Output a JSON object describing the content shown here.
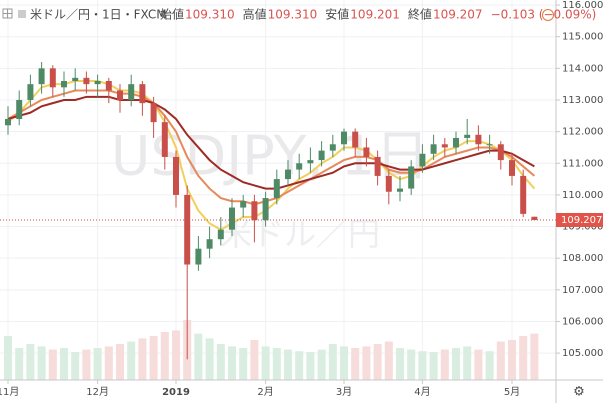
{
  "chart_data": {
    "type": "candlestick",
    "header": {
      "symbol": "米ドル／円・1日・FXCM",
      "ohlc": [
        {
          "label": "始値",
          "value": "109.310"
        },
        {
          "label": "高値",
          "value": "109.310"
        },
        {
          "label": "安値",
          "value": "109.201"
        },
        {
          "label": "終値",
          "value": "109.207"
        }
      ],
      "change": "−0.103 (−0.09%)"
    },
    "watermark": {
      "main": "USDJPY, 1日",
      "sub": "米ドル／円"
    },
    "categories": [
      null,
      null,
      null,
      null,
      null,
      null,
      null,
      null,
      null,
      null,
      null,
      null,
      null,
      null,
      null,
      null,
      null,
      null,
      null,
      null,
      null,
      null,
      null,
      null,
      null,
      null,
      null,
      null,
      null,
      null,
      null,
      null,
      null,
      null,
      null,
      null,
      null,
      null,
      null,
      null,
      null,
      null,
      null,
      null,
      null,
      null,
      null,
      null
    ],
    "candles": [
      [
        112.2,
        112.8,
        111.9,
        112.4
      ],
      [
        112.4,
        113.3,
        112.2,
        113.0
      ],
      [
        113.0,
        113.8,
        112.8,
        113.5
      ],
      [
        113.5,
        114.2,
        113.2,
        114.0
      ],
      [
        114.0,
        114.1,
        113.1,
        113.4
      ],
      [
        113.4,
        113.9,
        113.1,
        113.6
      ],
      [
        113.6,
        114.0,
        113.3,
        113.7
      ],
      [
        113.7,
        113.9,
        113.2,
        113.5
      ],
      [
        113.5,
        113.8,
        113.1,
        113.6
      ],
      [
        113.6,
        113.7,
        112.9,
        113.3
      ],
      [
        113.3,
        113.5,
        112.6,
        113.0
      ],
      [
        113.0,
        113.8,
        112.8,
        113.5
      ],
      [
        113.5,
        113.6,
        112.5,
        112.9
      ],
      [
        112.9,
        113.1,
        111.8,
        112.3
      ],
      [
        112.3,
        112.5,
        110.8,
        111.2
      ],
      [
        111.2,
        111.4,
        109.6,
        110.0
      ],
      [
        110.0,
        110.3,
        104.8,
        107.8
      ],
      [
        107.8,
        108.7,
        107.6,
        108.3
      ],
      [
        108.3,
        109.0,
        108.0,
        108.6
      ],
      [
        108.6,
        109.3,
        108.4,
        108.9
      ],
      [
        108.9,
        109.9,
        108.7,
        109.6
      ],
      [
        109.6,
        110.0,
        109.3,
        109.8
      ],
      [
        109.8,
        110.0,
        108.5,
        109.2
      ],
      [
        109.2,
        110.1,
        109.0,
        109.9
      ],
      [
        109.9,
        110.8,
        109.7,
        110.5
      ],
      [
        110.5,
        111.1,
        110.3,
        110.8
      ],
      [
        110.8,
        111.3,
        110.5,
        111.0
      ],
      [
        111.0,
        111.5,
        110.7,
        111.1
      ],
      [
        111.1,
        111.7,
        110.9,
        111.4
      ],
      [
        111.4,
        111.9,
        111.2,
        111.6
      ],
      [
        111.6,
        112.1,
        111.4,
        112.0
      ],
      [
        112.0,
        112.1,
        111.2,
        111.5
      ],
      [
        111.5,
        111.8,
        110.9,
        111.2
      ],
      [
        111.2,
        111.4,
        110.3,
        110.6
      ],
      [
        110.6,
        110.8,
        109.7,
        110.1
      ],
      [
        110.1,
        110.6,
        109.8,
        110.2
      ],
      [
        110.2,
        111.1,
        110.0,
        110.9
      ],
      [
        110.9,
        111.6,
        110.7,
        111.3
      ],
      [
        111.3,
        111.9,
        111.1,
        111.6
      ],
      [
        111.6,
        111.8,
        111.2,
        111.5
      ],
      [
        111.5,
        112.0,
        111.3,
        111.8
      ],
      [
        111.8,
        112.4,
        111.6,
        111.9
      ],
      [
        111.9,
        112.2,
        111.4,
        111.6
      ],
      [
        111.6,
        111.9,
        111.3,
        111.6
      ],
      [
        111.6,
        111.7,
        110.8,
        111.1
      ],
      [
        111.1,
        111.3,
        110.3,
        110.6
      ],
      [
        110.6,
        110.8,
        109.3,
        109.4
      ],
      [
        109.31,
        109.31,
        109.201,
        109.207
      ]
    ],
    "up_color": "#4f8a66",
    "down_color": "#c9504a",
    "series": [
      {
        "color": "#f2cf5b",
        "values": [
          112.3,
          112.6,
          113.0,
          113.4,
          113.5,
          113.5,
          113.6,
          113.6,
          113.6,
          113.5,
          113.3,
          113.3,
          113.2,
          112.9,
          112.3,
          111.5,
          110.2,
          109.5,
          109.1,
          108.9,
          109.1,
          109.3,
          109.3,
          109.5,
          109.8,
          110.2,
          110.5,
          110.7,
          111.0,
          111.2,
          111.5,
          111.5,
          111.4,
          111.1,
          110.7,
          110.5,
          110.6,
          110.9,
          111.2,
          111.4,
          111.5,
          111.7,
          111.7,
          111.6,
          111.4,
          111.1,
          110.6,
          110.2
        ]
      },
      {
        "color": "#e8895a",
        "values": [
          112.4,
          112.6,
          112.8,
          113.0,
          113.1,
          113.2,
          113.3,
          113.3,
          113.3,
          113.3,
          113.2,
          113.2,
          113.1,
          112.9,
          112.5,
          112.0,
          111.2,
          110.6,
          110.2,
          109.9,
          109.8,
          109.8,
          109.7,
          109.8,
          109.9,
          110.1,
          110.3,
          110.5,
          110.7,
          110.9,
          111.1,
          111.2,
          111.2,
          111.1,
          110.8,
          110.7,
          110.7,
          110.8,
          111.0,
          111.2,
          111.3,
          111.4,
          111.5,
          111.5,
          111.4,
          111.2,
          110.9,
          110.6
        ]
      },
      {
        "color": "#9e2b25",
        "values": [
          112.4,
          112.5,
          112.6,
          112.8,
          112.9,
          113.0,
          113.0,
          113.1,
          113.1,
          113.1,
          113.0,
          113.0,
          113.0,
          112.9,
          112.7,
          112.4,
          111.9,
          111.5,
          111.1,
          110.8,
          110.6,
          110.4,
          110.3,
          110.2,
          110.2,
          110.3,
          110.4,
          110.5,
          110.6,
          110.7,
          110.9,
          111.0,
          111.0,
          111.0,
          110.9,
          110.8,
          110.8,
          110.8,
          110.9,
          111.0,
          111.1,
          111.2,
          111.3,
          111.4,
          111.4,
          111.3,
          111.1,
          110.9
        ]
      }
    ],
    "volume": [
      55,
      40,
      45,
      42,
      38,
      40,
      35,
      38,
      40,
      42,
      45,
      48,
      52,
      55,
      60,
      62,
      75,
      58,
      52,
      45,
      42,
      40,
      50,
      42,
      40,
      38,
      36,
      35,
      38,
      45,
      42,
      40,
      42,
      45,
      48,
      40,
      38,
      36,
      35,
      38,
      40,
      42,
      38,
      36,
      48,
      50,
      55,
      58
    ],
    "volume_lim": [
      0,
      100
    ],
    "last_price_label": "109.207",
    "ylim": [
      104.15,
      116.16
    ],
    "yticks": [
      {
        "value": 105,
        "label": "105.000"
      },
      {
        "value": 106,
        "label": "106.000"
      },
      {
        "value": 107,
        "label": "107.000"
      },
      {
        "value": 108,
        "label": "108.000"
      },
      {
        "value": 109,
        "label": "109.000"
      },
      {
        "value": 110,
        "label": "110.000"
      },
      {
        "value": 111,
        "label": "111.000"
      },
      {
        "value": 112,
        "label": "112.000"
      },
      {
        "value": 113,
        "label": "113.000"
      },
      {
        "value": 114,
        "label": "114.000"
      },
      {
        "value": 115,
        "label": "115.000"
      },
      {
        "value": 116,
        "label": "116.000"
      }
    ],
    "xticks": [
      {
        "value": 0,
        "label": "11月"
      },
      {
        "value": 8,
        "label": "12月"
      },
      {
        "value": 15,
        "label": "2019"
      },
      {
        "value": 23,
        "label": "2月"
      },
      {
        "value": 30,
        "label": "3月"
      },
      {
        "value": 37,
        "label": "4月"
      },
      {
        "value": 45,
        "label": "5月"
      }
    ],
    "grid": true
  }
}
